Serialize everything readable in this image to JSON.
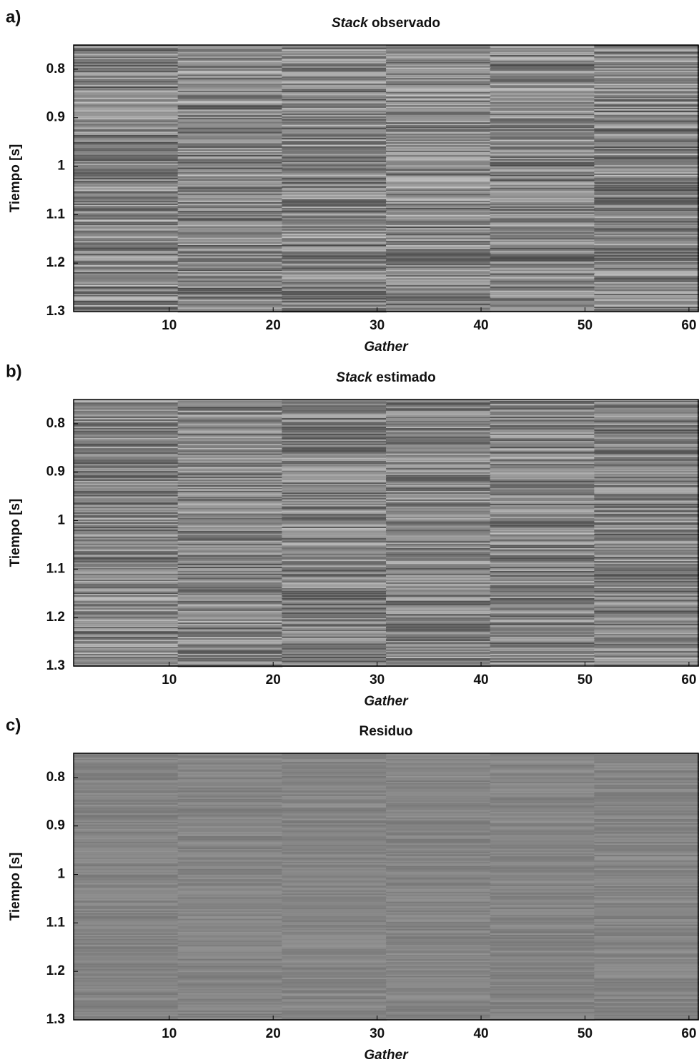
{
  "chart_data": [
    {
      "type": "image",
      "panel_label": "a)",
      "title_italic": "Stack",
      "title": "observado",
      "xlabel": "Gather",
      "ylabel": "Tiempo [s]",
      "xlim": [
        0.8,
        60.9
      ],
      "xticks": [
        10,
        20,
        30,
        40,
        50,
        60
      ],
      "ylim": [
        0.75,
        1.3
      ],
      "yticks": [
        0.8,
        0.9,
        1,
        1.1,
        1.2,
        1.3
      ],
      "y_inverted": true
    },
    {
      "type": "image",
      "panel_label": "b)",
      "title_italic": "Stack",
      "title": "estimado",
      "xlabel": "Gather",
      "ylabel": "Tiempo [s]",
      "xlim": [
        0.8,
        60.9
      ],
      "xticks": [
        10,
        20,
        30,
        40,
        50,
        60
      ],
      "ylim": [
        0.75,
        1.3
      ],
      "yticks": [
        0.8,
        0.9,
        1,
        1.1,
        1.2,
        1.3
      ],
      "y_inverted": true
    },
    {
      "type": "image",
      "panel_label": "c)",
      "title": "Residuo",
      "xlabel": "Gather",
      "ylabel": "Tiempo [s]",
      "xlim": [
        0.8,
        60.9
      ],
      "xticks": [
        10,
        20,
        30,
        40,
        50,
        60
      ],
      "ylim": [
        0.75,
        1.3
      ],
      "yticks": [
        0.8,
        0.9,
        1,
        1.1,
        1.2,
        1.3
      ],
      "y_inverted": true
    }
  ]
}
